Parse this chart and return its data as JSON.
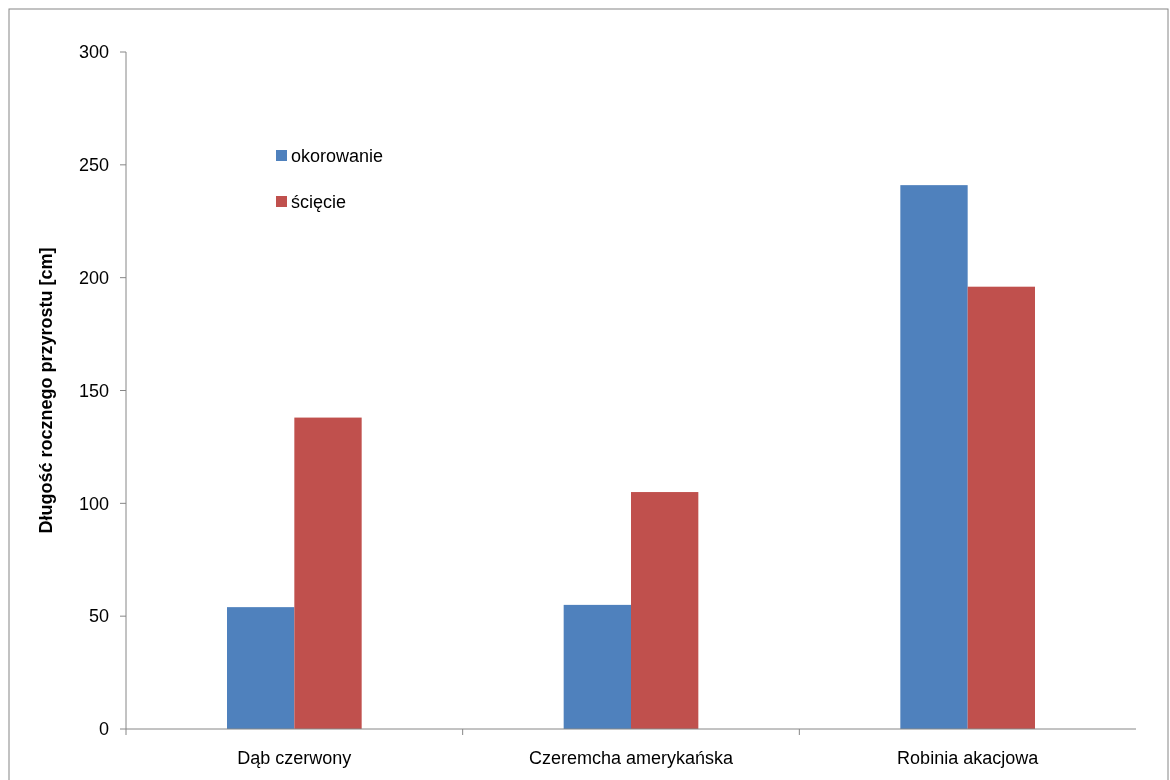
{
  "chart_data": {
    "type": "bar",
    "ylabel": "Długość rocznego przyrostu [cm]",
    "categories": [
      "Dąb czerwony",
      "Czeremcha amerykańska",
      "Robinia akacjowa"
    ],
    "series": [
      {
        "name": "okorowanie",
        "color": "#4f81bd",
        "values": [
          54,
          55,
          241
        ]
      },
      {
        "name": "ścięcie",
        "color": "#c0504d",
        "values": [
          138,
          105,
          196
        ]
      }
    ],
    "ylim": [
      0,
      300
    ],
    "yticks": [
      0,
      50,
      100,
      150,
      200,
      250,
      300
    ],
    "legend": "top left",
    "grid": false
  }
}
